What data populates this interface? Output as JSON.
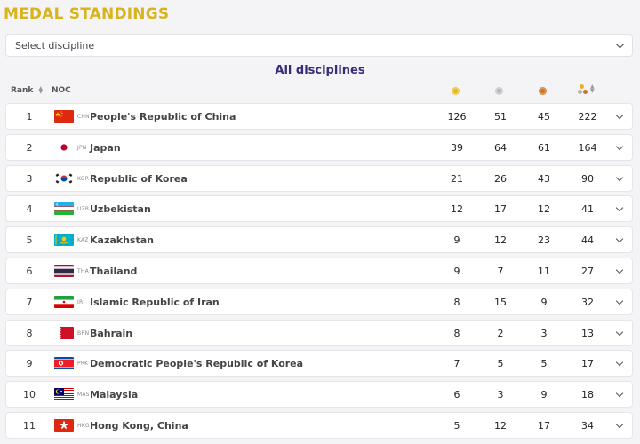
{
  "page": {
    "title": "MEDAL STANDINGS"
  },
  "filter": {
    "placeholder": "Select discipline"
  },
  "subtitle": "All disciplines",
  "table": {
    "headers": {
      "rank": "Rank",
      "noc": "NOC"
    },
    "rows": [
      {
        "rank": "1",
        "code": "CHN",
        "name": "People's Republic of China",
        "gold": "126",
        "silver": "51",
        "bronze": "45",
        "total": "222",
        "flag": "china-flag"
      },
      {
        "rank": "2",
        "code": "JPN",
        "name": "Japan",
        "gold": "39",
        "silver": "64",
        "bronze": "61",
        "total": "164",
        "flag": "japan-flag"
      },
      {
        "rank": "3",
        "code": "KOR",
        "name": "Republic of Korea",
        "gold": "21",
        "silver": "26",
        "bronze": "43",
        "total": "90",
        "flag": "korea-flag"
      },
      {
        "rank": "4",
        "code": "UZB",
        "name": "Uzbekistan",
        "gold": "12",
        "silver": "17",
        "bronze": "12",
        "total": "41",
        "flag": "uzbekistan-flag"
      },
      {
        "rank": "5",
        "code": "KAZ",
        "name": "Kazakhstan",
        "gold": "9",
        "silver": "12",
        "bronze": "23",
        "total": "44",
        "flag": "kazakhstan-flag"
      },
      {
        "rank": "6",
        "code": "THA",
        "name": "Thailand",
        "gold": "9",
        "silver": "7",
        "bronze": "11",
        "total": "27",
        "flag": "thailand-flag"
      },
      {
        "rank": "7",
        "code": "IRI",
        "name": "Islamic Republic of Iran",
        "gold": "8",
        "silver": "15",
        "bronze": "9",
        "total": "32",
        "flag": "iran-flag"
      },
      {
        "rank": "8",
        "code": "BRN",
        "name": "Bahrain",
        "gold": "8",
        "silver": "2",
        "bronze": "3",
        "total": "13",
        "flag": "bahrain-flag"
      },
      {
        "rank": "9",
        "code": "PRK",
        "name": "Democratic People's Republic of Korea",
        "gold": "7",
        "silver": "5",
        "bronze": "5",
        "total": "17",
        "flag": "dprk-flag"
      },
      {
        "rank": "10",
        "code": "MAS",
        "name": "Malaysia",
        "gold": "6",
        "silver": "3",
        "bronze": "9",
        "total": "18",
        "flag": "malaysia-flag"
      },
      {
        "rank": "11",
        "code": "HKG",
        "name": "Hong Kong, China",
        "gold": "5",
        "silver": "12",
        "bronze": "17",
        "total": "34",
        "flag": "hong-kong-flag"
      }
    ]
  },
  "colors": {
    "title": "#d8b41c",
    "subtitle": "#3b2a78",
    "gold": "#e4b52c",
    "silver": "#b5b5b5",
    "bronze": "#c7762d"
  }
}
